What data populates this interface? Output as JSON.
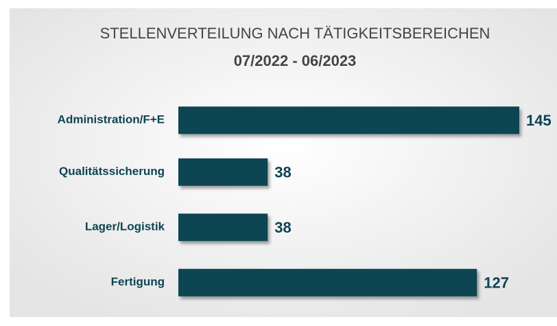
{
  "chart_data": {
    "type": "bar",
    "orientation": "horizontal",
    "title": "STELLENVERTEILUNG NACH TÄTIGKEITSBEREICHEN",
    "subtitle": "07/2022 - 06/2023",
    "categories": [
      "Administration/F+E",
      "Qualitätssicherung",
      "Lager/Logistik",
      "Fertigung"
    ],
    "values": [
      145,
      38,
      38,
      127
    ],
    "color": "#0d4452"
  }
}
